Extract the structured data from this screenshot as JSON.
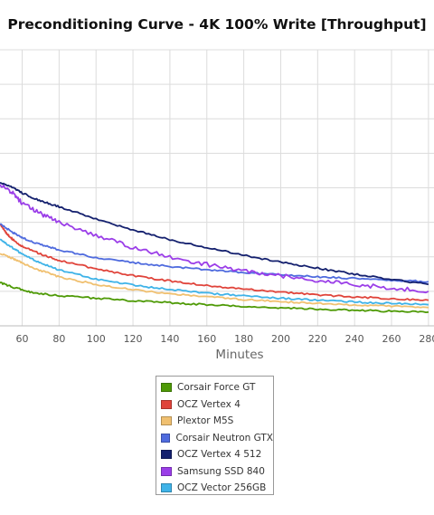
{
  "chart_data": {
    "type": "line",
    "title": "Preconditioning Curve - 4K 100% Write [Throughput]",
    "xlabel": "Minutes",
    "ylabel": "",
    "x_ticks": [
      60,
      80,
      100,
      120,
      140,
      160,
      180,
      200,
      220,
      240,
      260,
      280
    ],
    "xlim": [
      48,
      283
    ],
    "ylim": [
      0,
      8
    ],
    "grid": true,
    "legend_placement": "bottom",
    "series": [
      {
        "name": "Corsair Force GT",
        "color": "#4e9a06",
        "x": [
          48,
          55,
          65,
          80,
          100,
          120,
          140,
          160,
          180,
          200,
          220,
          240,
          260,
          280
        ],
        "y": [
          1.25,
          1.12,
          0.97,
          0.87,
          0.8,
          0.73,
          0.67,
          0.61,
          0.56,
          0.52,
          0.48,
          0.45,
          0.42,
          0.4
        ]
      },
      {
        "name": "OCZ Vertex 4",
        "color": "#e0443b",
        "x": [
          48,
          52,
          55,
          60,
          70,
          80,
          100,
          120,
          140,
          160,
          180,
          200,
          220,
          240,
          260,
          280
        ],
        "y": [
          2.95,
          2.65,
          2.5,
          2.3,
          2.08,
          1.9,
          1.65,
          1.46,
          1.3,
          1.17,
          1.07,
          0.98,
          0.9,
          0.84,
          0.79,
          0.74
        ]
      },
      {
        "name": "Plextor M5S",
        "color": "#f0c070",
        "x": [
          48,
          55,
          60,
          70,
          80,
          100,
          120,
          140,
          160,
          180,
          200,
          220,
          240,
          260,
          280
        ],
        "y": [
          2.1,
          1.95,
          1.82,
          1.6,
          1.42,
          1.2,
          1.05,
          0.93,
          0.84,
          0.76,
          0.7,
          0.65,
          0.6,
          0.57,
          0.53
        ]
      },
      {
        "name": "Corsair Neutron GTX",
        "color": "#4f6bde",
        "x": [
          48,
          55,
          60,
          70,
          80,
          100,
          120,
          140,
          160,
          180,
          200,
          220,
          240,
          260,
          280
        ],
        "y": [
          2.95,
          2.7,
          2.55,
          2.35,
          2.2,
          1.98,
          1.83,
          1.72,
          1.63,
          1.55,
          1.48,
          1.42,
          1.37,
          1.32,
          1.28
        ]
      },
      {
        "name": "OCZ Vertex 4 512",
        "color": "#14206e",
        "x": [
          48,
          55,
          60,
          70,
          80,
          100,
          120,
          140,
          160,
          180,
          200,
          220,
          240,
          260,
          280
        ],
        "y": [
          4.15,
          4.0,
          3.85,
          3.62,
          3.45,
          3.1,
          2.78,
          2.5,
          2.27,
          2.04,
          1.85,
          1.67,
          1.5,
          1.35,
          1.2
        ]
      },
      {
        "name": "Samsung SSD 840",
        "color": "#9b3ee8",
        "x": [
          48,
          55,
          60,
          70,
          80,
          100,
          120,
          140,
          160,
          180,
          200,
          220,
          240,
          260,
          280
        ],
        "y": [
          4.1,
          3.85,
          3.55,
          3.25,
          3.0,
          2.62,
          2.27,
          2.0,
          1.78,
          1.6,
          1.45,
          1.32,
          1.2,
          1.1,
          1.0
        ]
      },
      {
        "name": "OCZ Vector 256GB",
        "color": "#3fb3e8",
        "x": [
          48,
          55,
          60,
          70,
          80,
          100,
          120,
          140,
          160,
          180,
          200,
          220,
          240,
          260,
          280
        ],
        "y": [
          2.5,
          2.25,
          2.08,
          1.82,
          1.62,
          1.35,
          1.18,
          1.05,
          0.95,
          0.87,
          0.8,
          0.74,
          0.69,
          0.65,
          0.61
        ]
      }
    ]
  }
}
